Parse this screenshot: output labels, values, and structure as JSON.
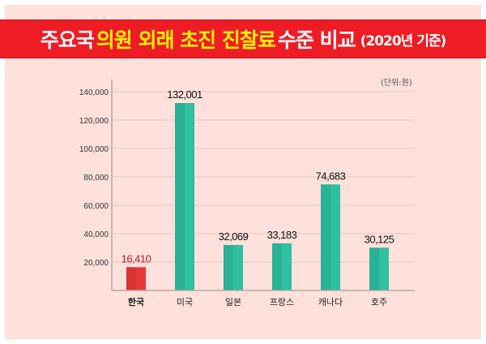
{
  "title": {
    "part1": "주요국",
    "highlight": "의원 외래 초진 진찰료",
    "part2": "수준 비교",
    "note": "(2020년 기준)"
  },
  "chart_data": {
    "type": "bar",
    "title": "주요국 의원 외래 초진 진찰료 수준 비교 (2020년 기준)",
    "unit_label": "(단위:원)",
    "categories": [
      "한국",
      "미국",
      "일본",
      "프랑스",
      "캐나다",
      "호주"
    ],
    "values": [
      16410,
      132001,
      32069,
      33183,
      74683,
      30125
    ],
    "value_labels": [
      "16,410",
      "132,001",
      "32,069",
      "33,183",
      "74,683",
      "30,125"
    ],
    "yticks": [
      "20,000",
      "40,000",
      "60,000",
      "80,000",
      "100,000",
      "120,000",
      "140,000"
    ],
    "ytick_values": [
      20000,
      40000,
      60000,
      80000,
      100000,
      120000,
      140000
    ],
    "ylim": [
      0,
      140000
    ],
    "grid": true,
    "colors": {
      "highlight": "#e8393a",
      "default": "#2fbfa1",
      "highlight_label": "#c0182e",
      "label": "#111111"
    }
  }
}
